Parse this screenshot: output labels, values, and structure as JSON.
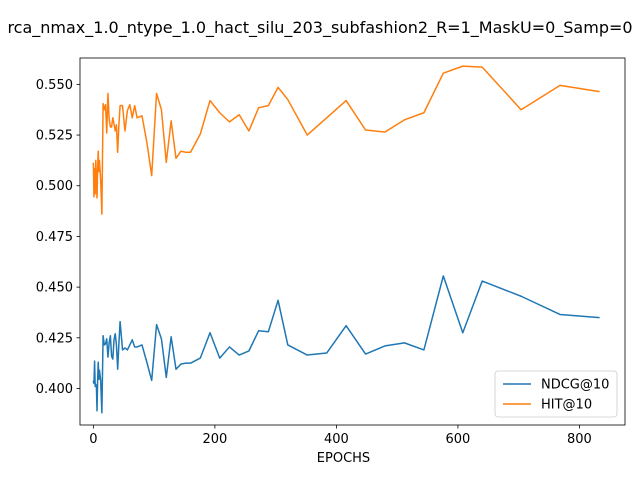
{
  "chart_data": {
    "type": "line",
    "title": "rca_nmax_1.0_ntype_1.0_hact_silu_203_subfashion2_R=1_MaskU=0_Samp=0",
    "xlabel": "EPOCHS",
    "ylabel": "",
    "xlim": [
      -22,
      875
    ],
    "ylim": [
      0.382,
      0.563
    ],
    "xticks": [
      0,
      200,
      400,
      600,
      800
    ],
    "yticks": [
      0.4,
      0.425,
      0.45,
      0.475,
      0.5,
      0.525,
      0.55
    ],
    "ytick_labels": [
      "0.400",
      "0.425",
      "0.450",
      "0.475",
      "0.500",
      "0.525",
      "0.550"
    ],
    "grid": false,
    "legend_position": "lower-right",
    "series": [
      {
        "name": "NDCG@10",
        "color": "#1f77b4",
        "x": [
          0,
          1,
          2,
          3,
          4,
          5,
          6,
          7,
          8,
          9,
          10,
          12,
          14,
          16,
          18,
          20,
          22,
          24,
          26,
          28,
          30,
          32,
          34,
          36,
          38,
          40,
          42,
          44,
          48,
          52,
          56,
          60,
          64,
          68,
          72,
          80,
          88,
          96,
          104,
          112,
          120,
          128,
          136,
          144,
          152,
          160,
          176,
          192,
          208,
          224,
          240,
          256,
          272,
          288,
          304,
          320,
          352,
          384,
          416,
          448,
          480,
          512,
          544,
          576,
          608,
          640,
          704,
          768,
          832
        ],
        "y": [
          0.4035,
          0.4025,
          0.4135,
          0.401,
          0.402,
          0.4015,
          0.389,
          0.404,
          0.413,
          0.4045,
          0.409,
          0.404,
          0.388,
          0.426,
          0.4215,
          0.422,
          0.4245,
          0.4155,
          0.4225,
          0.426,
          0.416,
          0.4145,
          0.424,
          0.427,
          0.4215,
          0.4095,
          0.422,
          0.433,
          0.419,
          0.42,
          0.419,
          0.4215,
          0.424,
          0.4205,
          0.4205,
          0.4215,
          0.413,
          0.404,
          0.4315,
          0.4245,
          0.4055,
          0.4255,
          0.4095,
          0.412,
          0.4125,
          0.4125,
          0.415,
          0.4275,
          0.415,
          0.4205,
          0.4165,
          0.4185,
          0.4285,
          0.428,
          0.4435,
          0.4215,
          0.4165,
          0.4175,
          0.431,
          0.417,
          0.421,
          0.4225,
          0.419,
          0.4555,
          0.4275,
          0.453,
          0.4455,
          0.4365,
          0.435
        ]
      },
      {
        "name": "HIT@10",
        "color": "#ff7f0e",
        "x": [
          0,
          1,
          2,
          3,
          4,
          5,
          6,
          7,
          8,
          9,
          10,
          12,
          14,
          16,
          18,
          20,
          22,
          24,
          26,
          28,
          30,
          32,
          34,
          36,
          38,
          40,
          42,
          44,
          48,
          52,
          56,
          60,
          64,
          68,
          72,
          80,
          88,
          96,
          104,
          112,
          120,
          128,
          136,
          144,
          152,
          160,
          176,
          192,
          208,
          224,
          240,
          256,
          272,
          288,
          304,
          320,
          352,
          384,
          416,
          448,
          480,
          512,
          544,
          576,
          608,
          640,
          704,
          768,
          832
        ],
        "y": [
          0.511,
          0.4945,
          0.5085,
          0.496,
          0.5125,
          0.4995,
          0.494,
          0.509,
          0.517,
          0.507,
          0.5125,
          0.503,
          0.486,
          0.5405,
          0.5375,
          0.54,
          0.526,
          0.5455,
          0.533,
          0.529,
          0.529,
          0.5335,
          0.5305,
          0.527,
          0.53,
          0.5165,
          0.53,
          0.5395,
          0.5395,
          0.527,
          0.537,
          0.54,
          0.5335,
          0.5395,
          0.5335,
          0.5345,
          0.5215,
          0.505,
          0.5455,
          0.5375,
          0.5115,
          0.532,
          0.5135,
          0.517,
          0.5165,
          0.5165,
          0.5255,
          0.542,
          0.536,
          0.5315,
          0.535,
          0.527,
          0.5385,
          0.5395,
          0.5485,
          0.5425,
          0.525,
          0.5335,
          0.542,
          0.5275,
          0.5265,
          0.5325,
          0.536,
          0.5555,
          0.559,
          0.5585,
          0.5375,
          0.5495,
          0.5465
        ]
      }
    ]
  }
}
